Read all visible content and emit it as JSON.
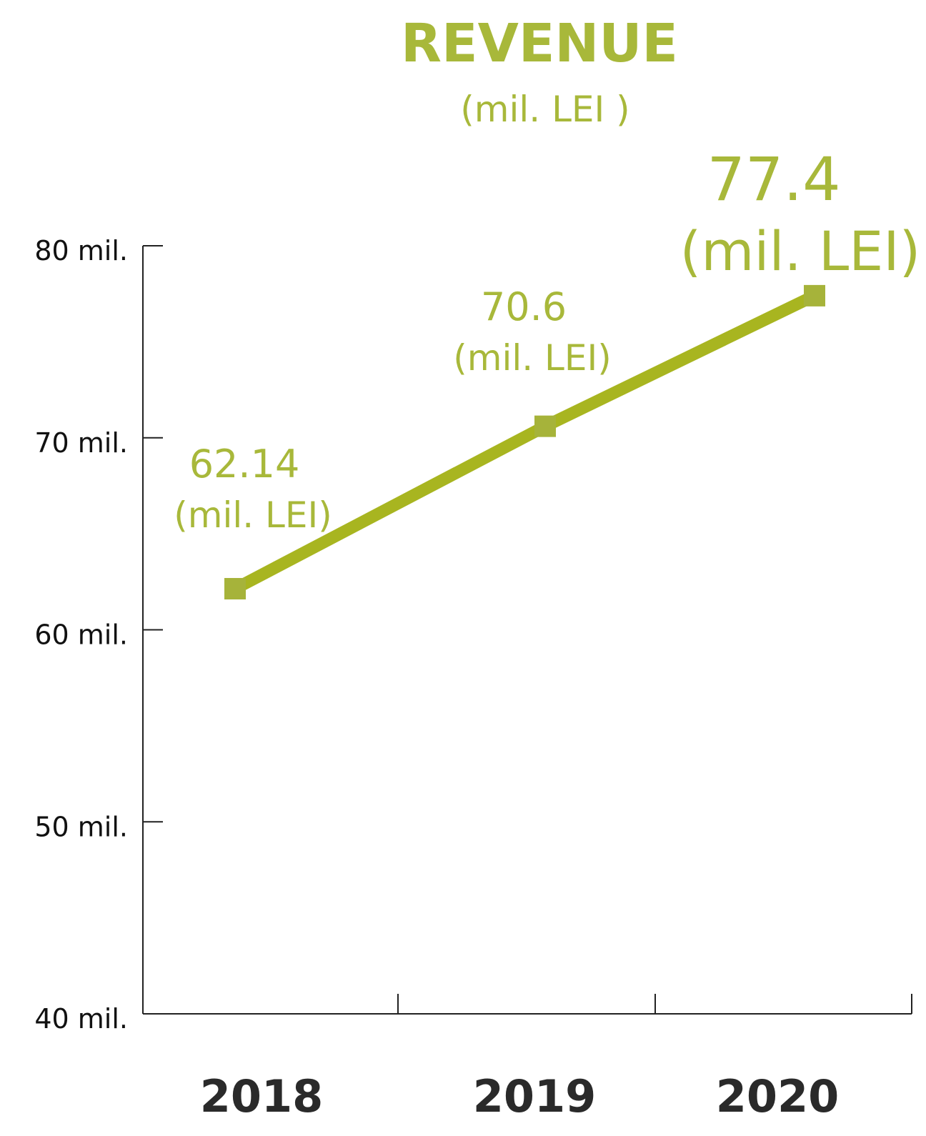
{
  "colors": {
    "accent": "#a8b83a",
    "line": "#a8b520",
    "marker": "#a6b33a",
    "axis": "#222222",
    "tick_text": "#111111",
    "category_text": "#2a2a2a"
  },
  "chart_data": {
    "type": "line",
    "title": "REVENUE",
    "subtitle": "(mil. LEI )",
    "xlabel": "",
    "ylabel": "",
    "categories": [
      "2018",
      "2019",
      "2020"
    ],
    "series": [
      {
        "values": [
          62.14,
          70.6,
          77.4
        ],
        "data_labels": [
          {
            "value": "62.14",
            "unit": "(mil. LEI)"
          },
          {
            "value": "70.6",
            "unit": "(mil. LEI)"
          },
          {
            "value": "77.4",
            "unit": "(mil. LEI)"
          }
        ]
      }
    ],
    "ylim": [
      40,
      80
    ],
    "yticks": [
      {
        "value": 80,
        "label": "80 mil."
      },
      {
        "value": 70,
        "label": "70  mil."
      },
      {
        "value": 60,
        "label": "60  mil."
      },
      {
        "value": 50,
        "label": "50  mil."
      },
      {
        "value": 40,
        "label": "40  mil."
      }
    ],
    "grid": false,
    "legend": "none",
    "marker": "square"
  }
}
